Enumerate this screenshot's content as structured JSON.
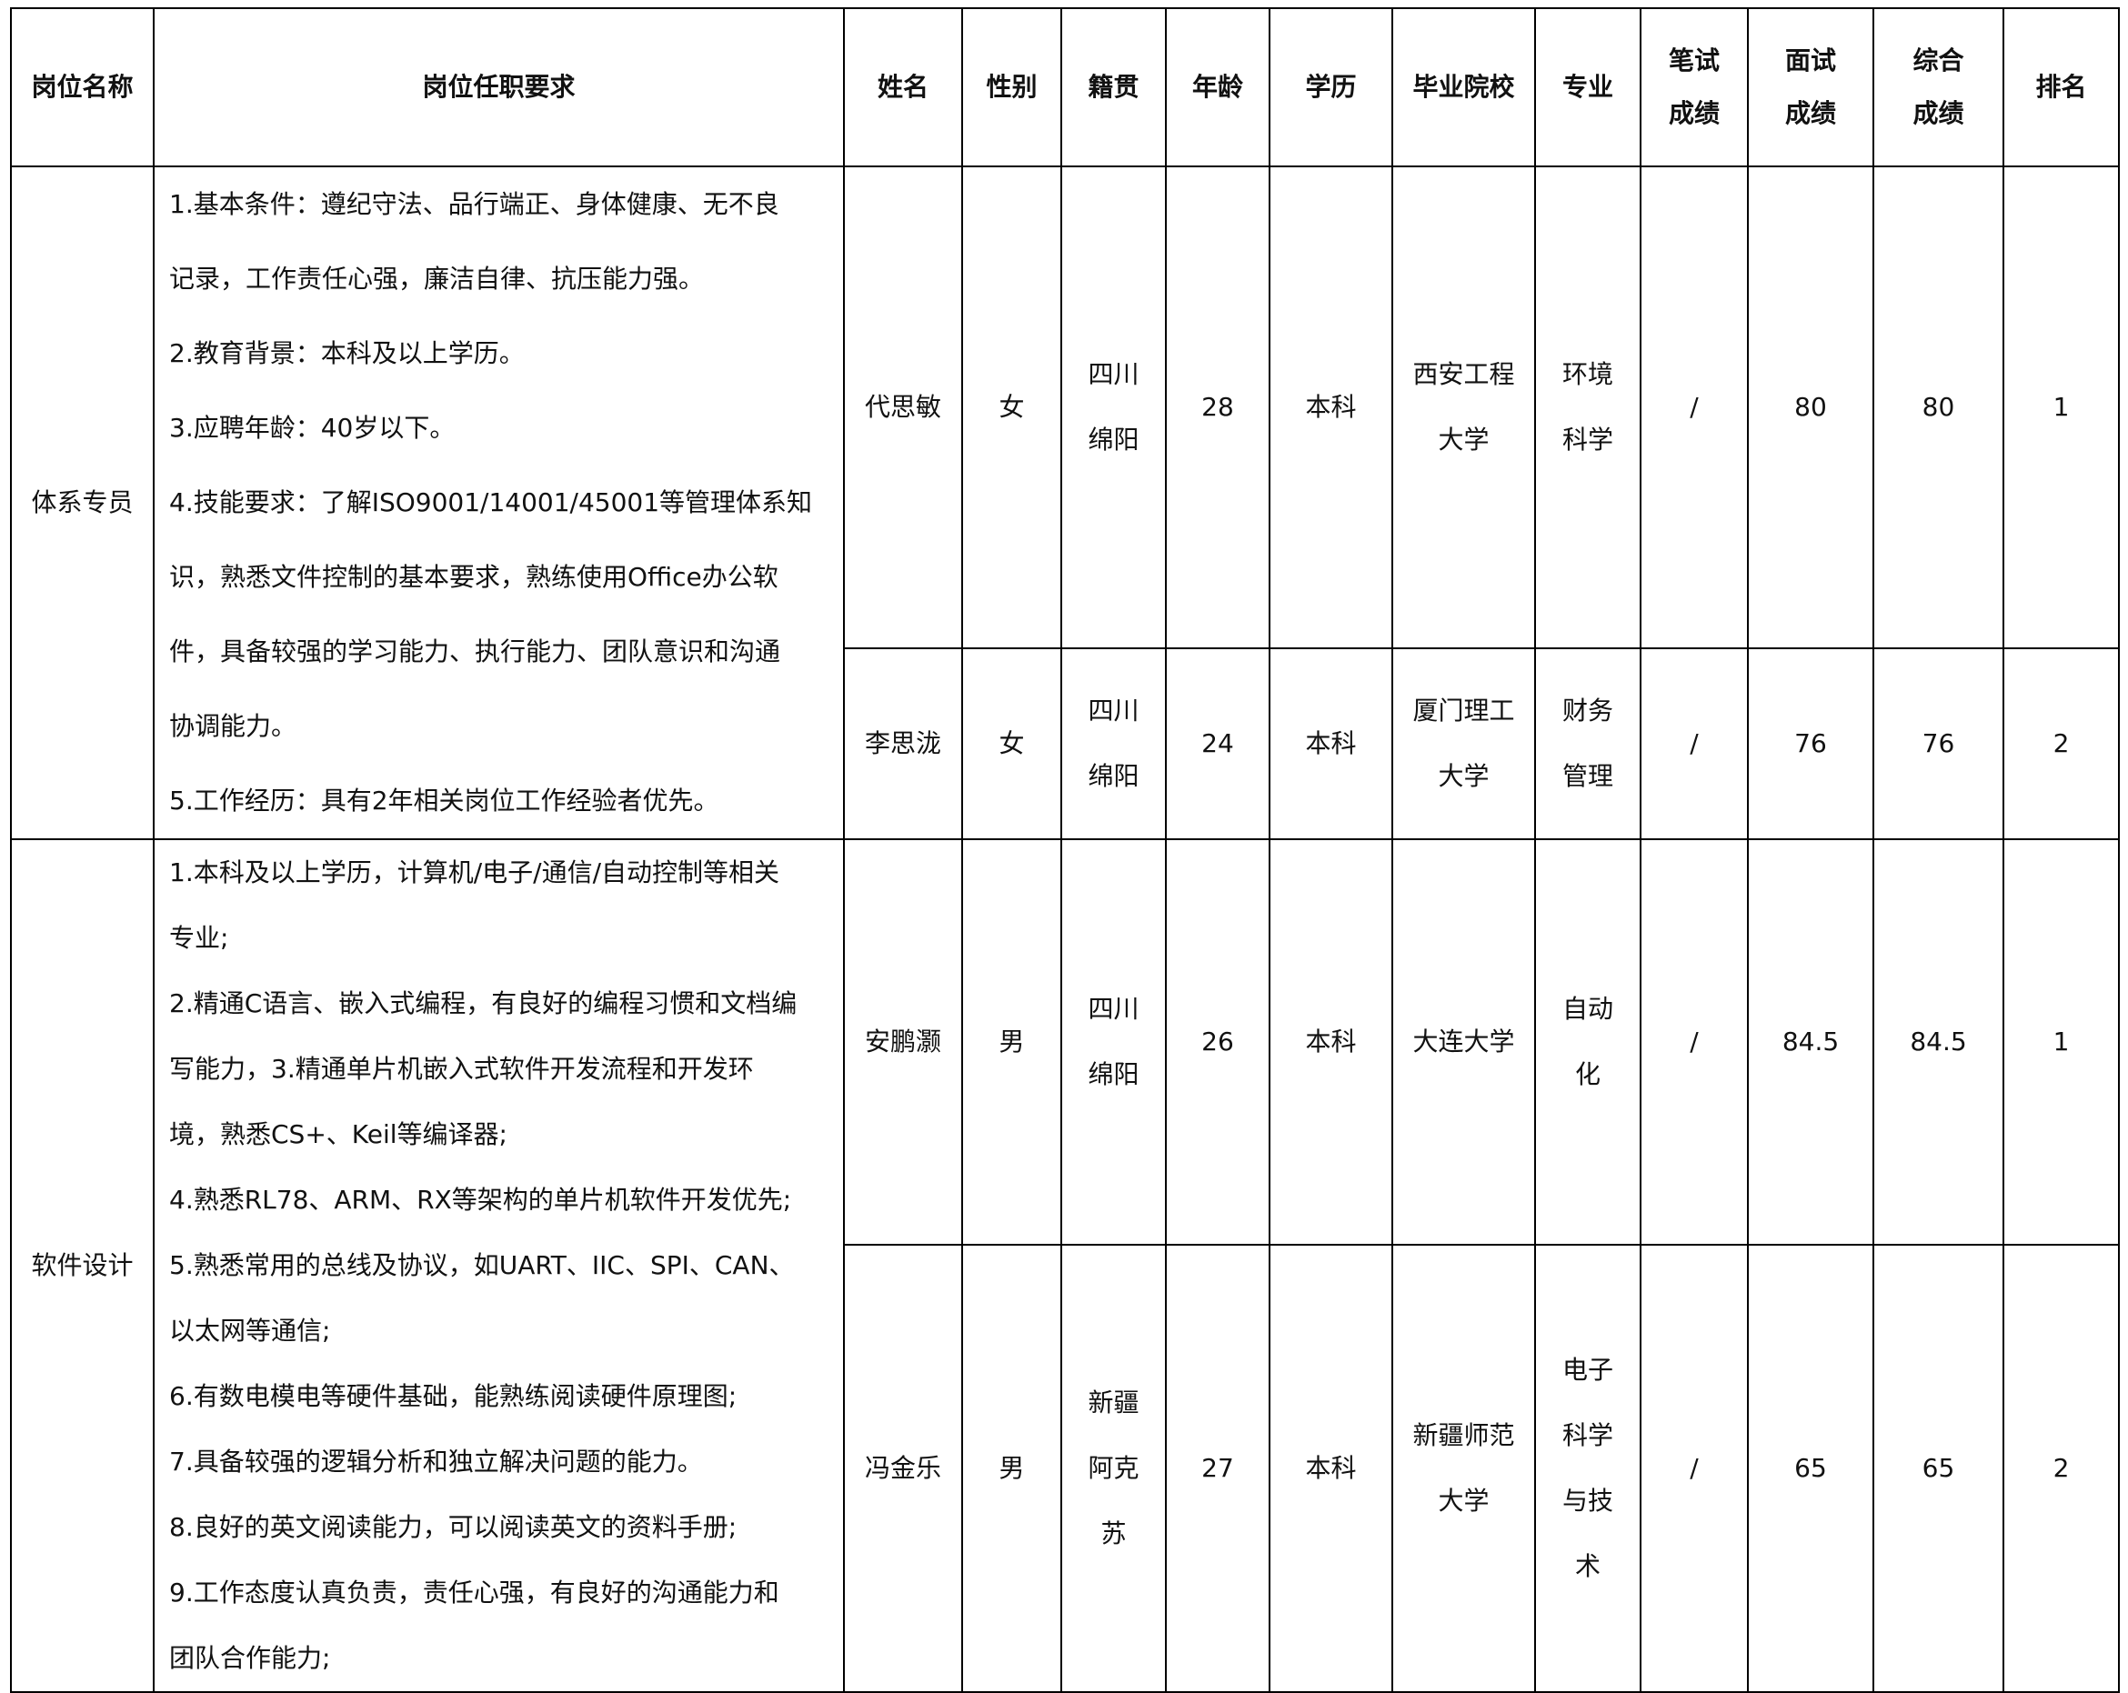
{
  "headers": {
    "position": "岗位名称",
    "requirements": "岗位任职要求",
    "name": "姓名",
    "gender": "性别",
    "hometown": "籍贯",
    "age": "年龄",
    "education": "学历",
    "school": "毕业院校",
    "major": "专业",
    "written": "笔试\n成绩",
    "interview": "面试\n成绩",
    "total": "综合\n成绩",
    "rank": "排名"
  },
  "groups": [
    {
      "position": "体系专员",
      "requirements": "1.基本条件：遵纪守法、品行端正、身体健康、无不良\n记录，工作责任心强，廉洁自律、抗压能力强。\n2.教育背景：本科及以上学历。\n3.应聘年龄：40岁以下。\n4.技能要求：了解ISO9001/14001/45001等管理体系知\n识，熟悉文件控制的基本要求，熟练使用Office办公软\n件，具备较强的学习能力、执行能力、团队意识和沟通\n协调能力。\n5.工作经历：具有2年相关岗位工作经验者优先。",
      "candidates": [
        {
          "name": "代思敏",
          "gender": "女",
          "hometown": "四川\n绵阳",
          "age": "28",
          "education": "本科",
          "school": "西安工程\n大学",
          "major": "环境\n科学",
          "written": "/",
          "interview": "80",
          "total": "80",
          "rank": "1"
        },
        {
          "name": "李思泷",
          "gender": "女",
          "hometown": "四川\n绵阳",
          "age": "24",
          "education": "本科",
          "school": "厦门理工\n大学",
          "major": "财务\n管理",
          "written": "/",
          "interview": "76",
          "total": "76",
          "rank": "2"
        }
      ]
    },
    {
      "position": "软件设计",
      "requirements": "1.本科及以上学历，计算机/电子/通信/自动控制等相关\n专业;\n2.精通C语言、嵌入式编程，有良好的编程习惯和文档编\n写能力，3.精通单片机嵌入式软件开发流程和开发环\n境，熟悉CS+、Keil等编译器;\n4.熟悉RL78、ARM、RX等架构的单片机软件开发优先;\n5.熟悉常用的总线及协议，如UART、IIC、SPI、CAN、\n以太网等通信;\n6.有数电模电等硬件基础，能熟练阅读硬件原理图;\n7.具备较强的逻辑分析和独立解决问题的能力。\n8.良好的英文阅读能力，可以阅读英文的资料手册;\n9.工作态度认真负责，责任心强，有良好的沟通能力和\n团队合作能力;",
      "candidates": [
        {
          "name": "安鹏灏",
          "gender": "男",
          "hometown": "四川\n绵阳",
          "age": "26",
          "education": "本科",
          "school": "大连大学",
          "major": "自动\n化",
          "written": "/",
          "interview": "84.5",
          "total": "84.5",
          "rank": "1"
        },
        {
          "name": "冯金乐",
          "gender": "男",
          "hometown": "新疆\n阿克\n苏",
          "age": "27",
          "education": "本科",
          "school": "新疆师范\n大学",
          "major": "电子\n科学\n与技\n术",
          "written": "/",
          "interview": "65",
          "total": "65",
          "rank": "2"
        }
      ]
    }
  ]
}
